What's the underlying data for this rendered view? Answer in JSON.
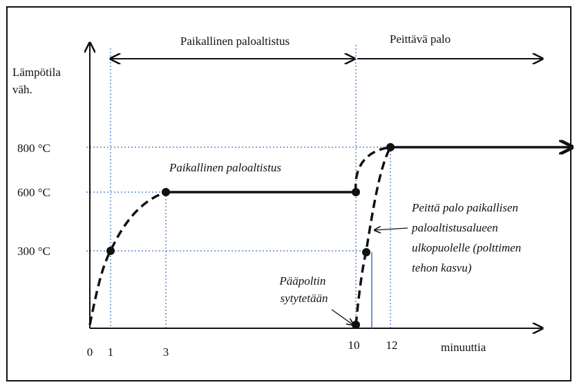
{
  "axes": {
    "y_label": [
      "Lämpötila",
      "väh."
    ],
    "x_label": "minuuttia",
    "y_ticks": [
      "800 °C",
      "600 °C",
      "300 °C"
    ],
    "x_ticks": [
      "0",
      "1",
      "3",
      "10",
      "12"
    ]
  },
  "phases": [
    "Paikallinen paloaltistus",
    "Peittävä palo"
  ],
  "annotations": {
    "plateau": "Paikallinen paloaltistus",
    "spread": [
      "Peittä palo paikallisen",
      "paloaltistusalueen",
      "ulkopuolelle (polttimen",
      "tehon kasvu)"
    ],
    "ignition": [
      "Pääpoltin",
      "sytytetään"
    ]
  }
}
